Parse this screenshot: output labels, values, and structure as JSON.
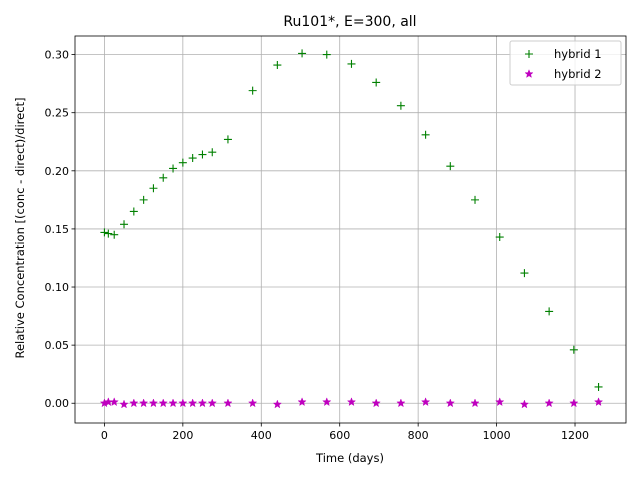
{
  "chart_data": {
    "type": "scatter",
    "title": "Ru101*, E=300, all",
    "xlabel": "Time (days)",
    "ylabel": "Relative Concentration [(conc - direct)/direct]",
    "xlim": [
      -75,
      1330
    ],
    "ylim": [
      -0.017,
      0.316
    ],
    "xticks": [
      0,
      200,
      400,
      600,
      800,
      1000,
      1200
    ],
    "yticks": [
      0.0,
      0.05,
      0.1,
      0.15,
      0.2,
      0.25,
      0.3
    ],
    "xtick_labels": [
      "0",
      "200",
      "400",
      "600",
      "800",
      "1000",
      "1200"
    ],
    "ytick_labels": [
      "0.00",
      "0.05",
      "0.10",
      "0.15",
      "0.20",
      "0.25",
      "0.30"
    ],
    "grid": true,
    "legend_position": "top-right",
    "series": [
      {
        "name": "hybrid 1",
        "marker": "plus",
        "color": "#008000",
        "x": [
          0,
          10,
          25,
          50,
          75,
          100,
          125,
          150,
          175,
          200,
          225,
          250,
          275,
          315,
          378,
          441,
          504,
          567,
          630,
          693,
          756,
          819,
          882,
          945,
          1008,
          1071,
          1134,
          1197,
          1260
        ],
        "y": [
          0.147,
          0.146,
          0.145,
          0.154,
          0.165,
          0.175,
          0.185,
          0.194,
          0.202,
          0.207,
          0.211,
          0.214,
          0.216,
          0.227,
          0.269,
          0.291,
          0.301,
          0.3,
          0.292,
          0.276,
          0.256,
          0.231,
          0.204,
          0.175,
          0.143,
          0.112,
          0.079,
          0.046,
          0.014
        ]
      },
      {
        "name": "hybrid 2",
        "marker": "star",
        "color": "#bf00bf",
        "x": [
          0,
          10,
          25,
          50,
          75,
          100,
          125,
          150,
          175,
          200,
          225,
          250,
          275,
          315,
          378,
          441,
          504,
          567,
          630,
          693,
          756,
          819,
          882,
          945,
          1008,
          1071,
          1134,
          1197,
          1260
        ],
        "y": [
          0.0,
          0.001,
          0.001,
          -0.001,
          0.0,
          0.0,
          0.0,
          0.0,
          0.0,
          0.0,
          0.0,
          0.0,
          0.0,
          0.0,
          0.0,
          -0.001,
          0.001,
          0.001,
          0.001,
          0.0,
          0.0,
          0.001,
          0.0,
          0.0,
          0.001,
          -0.001,
          0.0,
          0.0,
          0.001
        ]
      }
    ]
  }
}
